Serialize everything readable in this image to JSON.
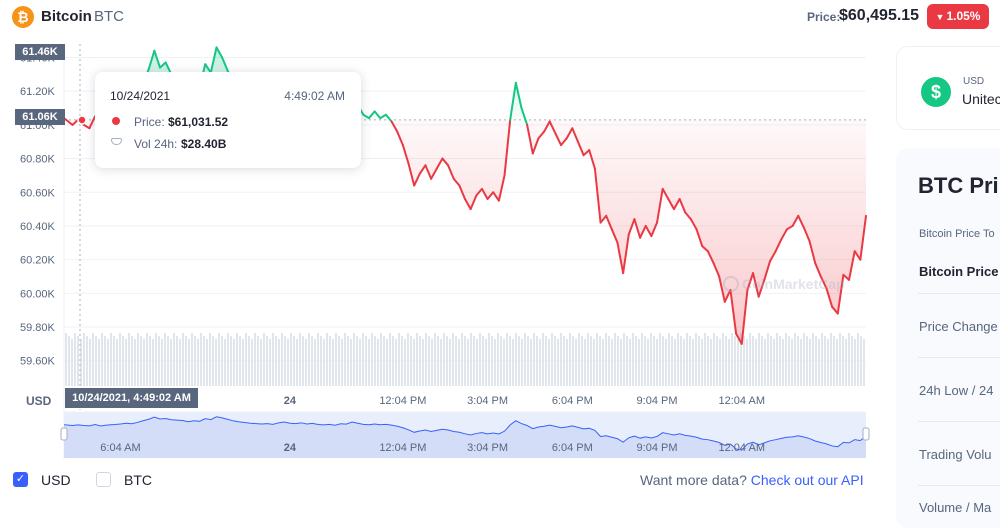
{
  "header": {
    "coin_logo_glyph": "₿",
    "coin_name": "Bitcoin",
    "coin_symbol": "BTC",
    "price_label": "Price:",
    "price_value": "$60,495.15",
    "change_arrow": "▼",
    "change_value": "1.05%",
    "change_color": "#ea3943"
  },
  "tooltip": {
    "date": "10/24/2021",
    "time": "4:49:02 AM",
    "price_label": "Price:",
    "price_value": "$61,031.52",
    "vol_label": "Vol 24h:",
    "vol_value": "$28.40B"
  },
  "crosshair": {
    "y_flag_top": "61.46K",
    "y_flag_value": "61.06K",
    "x_flag": "10/24/2021, 4:49:02 AM"
  },
  "axis_unit_label": "USD",
  "watermark": "CoinMarketCap",
  "footer": {
    "usd_check": "✓",
    "usd_label": "USD",
    "btc_label": "BTC",
    "more_data": "Want more data?",
    "api_link": "Check out our API"
  },
  "side_panel": {
    "currency_symbol": "$",
    "currency_code": "USD",
    "currency_name": "Unitec",
    "stats_title": "BTC Pri",
    "stats_subtitle": "Bitcoin Price To",
    "rows": [
      "Bitcoin Price",
      "Price Change",
      "24h Low / 24",
      "Trading Volu",
      "Volume / Ma"
    ]
  },
  "colors": {
    "up": "#16c784",
    "down": "#ea3943",
    "accent": "#3861fb"
  },
  "chart_data": {
    "type": "line",
    "title": "",
    "xlabel": "",
    "ylabel": "USD",
    "ylim": [
      59450,
      61480
    ],
    "y_ticks": [
      61400,
      61200,
      61000,
      60800,
      60600,
      60400,
      60200,
      60000,
      59800,
      59600
    ],
    "y_tick_labels": [
      "61.40K",
      "61.20K",
      "61.00K",
      "60.80K",
      "60.60K",
      "60.40K",
      "60.20K",
      "60.00K",
      "59.80K",
      "59.60K"
    ],
    "x_range_hours": [
      0,
      24.8
    ],
    "x_ticks": [
      8,
      12,
      15,
      18,
      21,
      24
    ],
    "x_tick_labels": [
      "24",
      "12:04 PM",
      "3:04 PM",
      "6:04 PM",
      "9:04 PM",
      "12:04 AM"
    ],
    "navigator_x_ticks": [
      2,
      8,
      12,
      15,
      18,
      21,
      24
    ],
    "navigator_x_tick_labels": [
      "6:04 AM",
      "24",
      "12:04 PM",
      "3:04 PM",
      "6:04 PM",
      "9:04 PM",
      "12:04 AM"
    ],
    "baseline_price": 61030,
    "grid": true,
    "series": [
      {
        "values": [
          [
            0.0,
            61040
          ],
          [
            0.3,
            61000
          ],
          [
            0.5,
            61030
          ],
          [
            0.7,
            61000
          ],
          [
            0.9,
            60980
          ],
          [
            1.1,
            61050
          ],
          [
            1.3,
            60970
          ],
          [
            1.5,
            61020
          ],
          [
            1.8,
            61050
          ],
          [
            2.0,
            61080
          ],
          [
            2.2,
            61120
          ],
          [
            2.4,
            61090
          ],
          [
            2.6,
            61160
          ],
          [
            2.8,
            61250
          ],
          [
            3.0,
            61330
          ],
          [
            3.2,
            61440
          ],
          [
            3.4,
            61340
          ],
          [
            3.6,
            61370
          ],
          [
            3.8,
            61300
          ],
          [
            4.0,
            61280
          ],
          [
            4.2,
            61260
          ],
          [
            4.4,
            61200
          ],
          [
            4.6,
            61250
          ],
          [
            4.8,
            61220
          ],
          [
            5.0,
            61360
          ],
          [
            5.2,
            61310
          ],
          [
            5.4,
            61460
          ],
          [
            5.6,
            61400
          ],
          [
            5.8,
            61320
          ],
          [
            6.0,
            61240
          ],
          [
            6.2,
            61190
          ],
          [
            6.4,
            61160
          ],
          [
            6.6,
            61120
          ],
          [
            6.8,
            61100
          ],
          [
            7.0,
            61080
          ],
          [
            7.2,
            61100
          ],
          [
            7.4,
            61060
          ],
          [
            7.6,
            61140
          ],
          [
            7.8,
            61180
          ],
          [
            8.0,
            61120
          ],
          [
            8.2,
            61100
          ],
          [
            8.4,
            61140
          ],
          [
            8.6,
            61080
          ],
          [
            8.8,
            61110
          ],
          [
            9.0,
            61050
          ],
          [
            9.2,
            61030
          ],
          [
            9.4,
            61060
          ],
          [
            9.6,
            61010
          ],
          [
            9.8,
            61090
          ],
          [
            10.0,
            61070
          ],
          [
            10.2,
            61180
          ],
          [
            10.4,
            61120
          ],
          [
            10.6,
            61060
          ],
          [
            10.8,
            61040
          ],
          [
            11.0,
            61080
          ],
          [
            11.2,
            61040
          ],
          [
            11.4,
            61060
          ],
          [
            11.6,
            61020
          ],
          [
            11.8,
            60960
          ],
          [
            12.0,
            60880
          ],
          [
            12.2,
            60770
          ],
          [
            12.4,
            60640
          ],
          [
            12.6,
            60710
          ],
          [
            12.8,
            60760
          ],
          [
            13.0,
            60680
          ],
          [
            13.2,
            60740
          ],
          [
            13.4,
            60800
          ],
          [
            13.6,
            60760
          ],
          [
            13.8,
            60680
          ],
          [
            14.0,
            60640
          ],
          [
            14.2,
            60560
          ],
          [
            14.4,
            60500
          ],
          [
            14.6,
            60580
          ],
          [
            14.8,
            60620
          ],
          [
            15.0,
            60560
          ],
          [
            15.2,
            60600
          ],
          [
            15.4,
            60550
          ],
          [
            15.6,
            60700
          ],
          [
            15.8,
            61030
          ],
          [
            16.0,
            61250
          ],
          [
            16.2,
            61100
          ],
          [
            16.4,
            61000
          ],
          [
            16.6,
            60830
          ],
          [
            16.8,
            60920
          ],
          [
            17.0,
            60960
          ],
          [
            17.2,
            61020
          ],
          [
            17.4,
            60950
          ],
          [
            17.6,
            60880
          ],
          [
            17.8,
            60920
          ],
          [
            18.0,
            60980
          ],
          [
            18.2,
            60900
          ],
          [
            18.4,
            60820
          ],
          [
            18.6,
            60850
          ],
          [
            18.8,
            60740
          ],
          [
            19.0,
            60420
          ],
          [
            19.2,
            60460
          ],
          [
            19.4,
            60380
          ],
          [
            19.6,
            60300
          ],
          [
            19.8,
            60120
          ],
          [
            20.0,
            60350
          ],
          [
            20.2,
            60440
          ],
          [
            20.4,
            60330
          ],
          [
            20.6,
            60400
          ],
          [
            20.8,
            60340
          ],
          [
            21.0,
            60420
          ],
          [
            21.2,
            60620
          ],
          [
            21.4,
            60560
          ],
          [
            21.6,
            60500
          ],
          [
            21.8,
            60560
          ],
          [
            22.0,
            60480
          ],
          [
            22.2,
            60440
          ],
          [
            22.4,
            60380
          ],
          [
            22.6,
            60280
          ],
          [
            22.8,
            60250
          ],
          [
            23.0,
            60180
          ],
          [
            23.2,
            60100
          ],
          [
            23.4,
            59950
          ],
          [
            23.6,
            60020
          ],
          [
            23.8,
            59760
          ],
          [
            24.0,
            59700
          ],
          [
            24.2,
            60020
          ],
          [
            24.4,
            60120
          ],
          [
            24.6,
            59980
          ],
          [
            24.8,
            60080
          ],
          [
            25.0,
            60190
          ],
          [
            25.2,
            60250
          ],
          [
            25.4,
            60320
          ],
          [
            25.6,
            60380
          ],
          [
            25.8,
            60400
          ],
          [
            26.0,
            60460
          ],
          [
            26.2,
            60390
          ],
          [
            26.4,
            60310
          ],
          [
            26.6,
            60180
          ],
          [
            26.8,
            60100
          ],
          [
            27.0,
            60030
          ],
          [
            27.2,
            59920
          ],
          [
            27.4,
            59880
          ],
          [
            27.6,
            60110
          ],
          [
            27.8,
            60080
          ],
          [
            28.0,
            60250
          ],
          [
            28.2,
            60200
          ],
          [
            28.4,
            60460
          ]
        ]
      }
    ]
  }
}
